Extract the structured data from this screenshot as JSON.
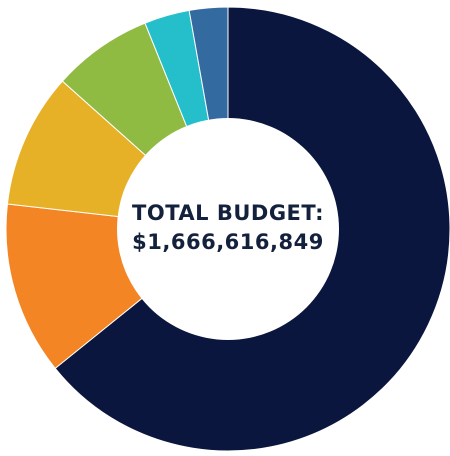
{
  "chart_data": {
    "type": "pie",
    "variant": "donut",
    "center_label": {
      "line1": "TOTAL BUDGET:",
      "line2": "$1,666,616,849"
    },
    "slices": [
      {
        "value": 0.642,
        "color": "#0b163f"
      },
      {
        "value": 0.126,
        "color": "#f48524"
      },
      {
        "value": 0.098,
        "color": "#e6b127"
      },
      {
        "value": 0.073,
        "color": "#8fbb42"
      },
      {
        "value": 0.033,
        "color": "#25bfcb"
      },
      {
        "value": 0.028,
        "color": "#336aa0"
      }
    ],
    "start_angle_deg": 0,
    "direction": "clockwise",
    "legend": "none",
    "label_color": "#14213d"
  }
}
